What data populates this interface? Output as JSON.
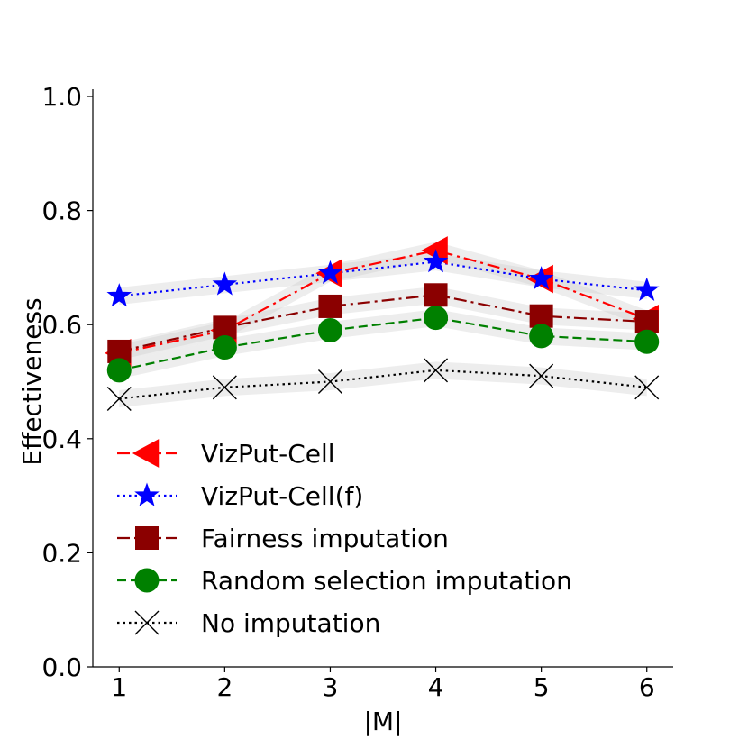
{
  "chart_data": {
    "type": "line",
    "title": "",
    "xlabel": "|M|",
    "ylabel": "Effectiveness",
    "x": [
      1,
      2,
      3,
      4,
      5,
      6
    ],
    "x_tick_labels": [
      "1",
      "2",
      "3",
      "4",
      "5",
      "6"
    ],
    "y_tick_labels": [
      "0.0",
      "0.2",
      "0.4",
      "0.6",
      "0.8",
      "1.0"
    ],
    "y_ticks": [
      0.0,
      0.2,
      0.4,
      0.6,
      0.8,
      1.0
    ],
    "ylim": [
      0.0,
      1.0
    ],
    "xlim": [
      0.75,
      6.25
    ],
    "grid": false,
    "legend_position": "lower-left",
    "series": [
      {
        "name": "VizPut-Cell",
        "values": [
          0.55,
          0.59,
          0.69,
          0.73,
          0.68,
          0.61
        ],
        "band": 0.015,
        "color": "#ff0000",
        "line_style": "dashdot",
        "marker": "triangle-left"
      },
      {
        "name": "VizPut-Cell(f)",
        "values": [
          0.65,
          0.67,
          0.69,
          0.71,
          0.68,
          0.66
        ],
        "band": 0.015,
        "color": "#0000ff",
        "line_style": "dotted",
        "marker": "star"
      },
      {
        "name": "Fairness imputation",
        "values": [
          0.553,
          0.595,
          0.632,
          0.652,
          0.615,
          0.605
        ],
        "band": 0.015,
        "color": "#8b0000",
        "line_style": "dashdot",
        "marker": "square"
      },
      {
        "name": "Random selection imputation",
        "values": [
          0.52,
          0.56,
          0.59,
          0.612,
          0.58,
          0.57
        ],
        "band": 0.015,
        "color": "#008000",
        "line_style": "dashed",
        "marker": "circle"
      },
      {
        "name": "No imputation",
        "values": [
          0.47,
          0.49,
          0.5,
          0.52,
          0.51,
          0.49
        ],
        "band": 0.015,
        "color": "#000000",
        "line_style": "dotted",
        "marker": "x"
      }
    ]
  }
}
